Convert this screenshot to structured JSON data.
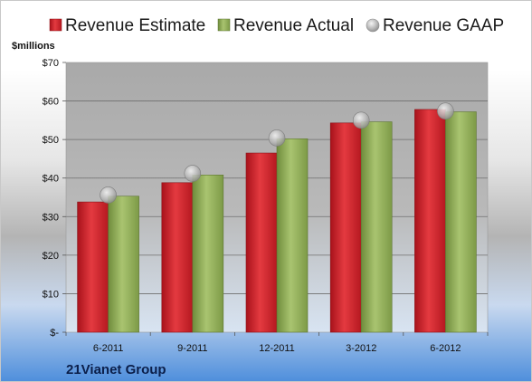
{
  "chart_data": {
    "type": "bar",
    "unit_label": "$millions",
    "company": "21Vianet Group",
    "categories": [
      "6-2011",
      "9-2011",
      "12-2011",
      "3-2012",
      "6-2012"
    ],
    "series": [
      {
        "name": "Revenue Estimate",
        "kind": "bar",
        "color": "#d0202a",
        "values": [
          33.8,
          38.8,
          46.5,
          54.3,
          57.8
        ]
      },
      {
        "name": "Revenue Actual",
        "kind": "bar",
        "color": "#8fae57",
        "values": [
          35.3,
          40.8,
          50.2,
          54.6,
          57.2
        ]
      },
      {
        "name": "Revenue GAAP",
        "kind": "marker",
        "color": "#b8b8b8",
        "values": [
          35.6,
          41.2,
          50.4,
          55.0,
          57.4
        ]
      }
    ],
    "y_ticks": [
      0,
      10,
      20,
      30,
      40,
      50,
      60,
      70
    ],
    "y_tick_labels": [
      "$-",
      "$10",
      "$20",
      "$30",
      "$40",
      "$50",
      "$60",
      "$70"
    ],
    "ylim": [
      0,
      70
    ],
    "grid": true,
    "legend_position": "top"
  }
}
